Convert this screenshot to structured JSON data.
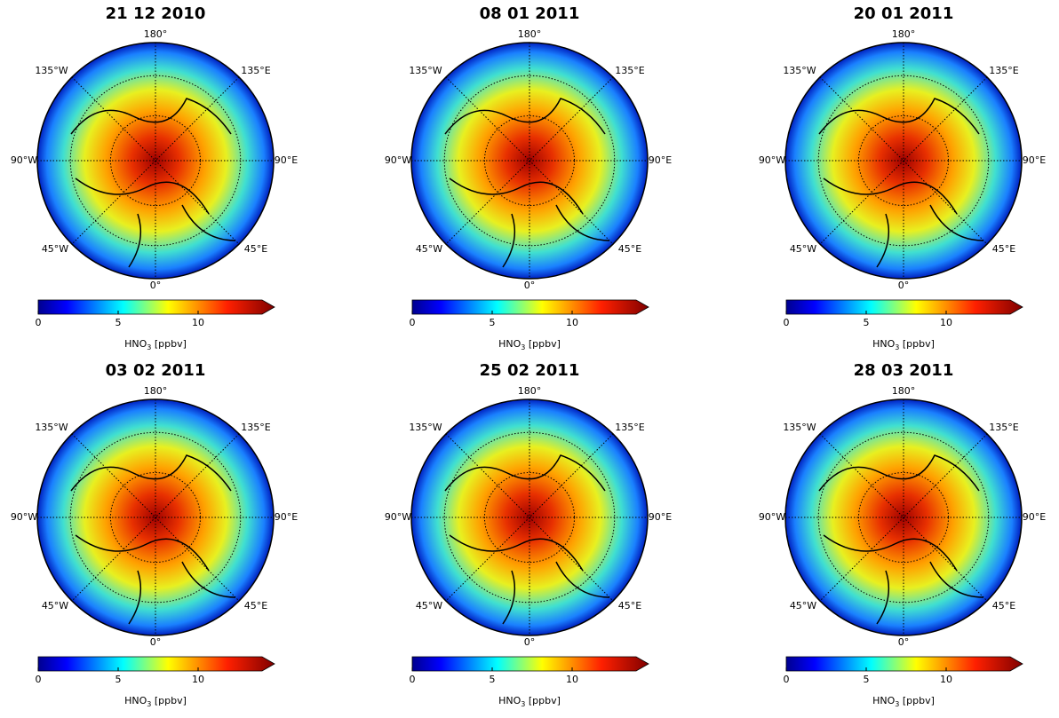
{
  "panels": [
    {
      "title": "21 12 2010"
    },
    {
      "title": "08 01 2011"
    },
    {
      "title": "20 01 2011"
    },
    {
      "title": "03 02 2011"
    },
    {
      "title": "25 02 2011"
    },
    {
      "title": "28 03 2011"
    }
  ],
  "map_labels": {
    "top": "180°",
    "top_right": "135°E",
    "right": "90°E",
    "bottom_right": "45°E",
    "bottom": "0°",
    "bottom_left": "45°W",
    "left": "90°W",
    "top_left": "135°W"
  },
  "colorbar": {
    "range": [
      0,
      14
    ],
    "ticks": [
      0,
      5,
      10
    ],
    "label_main": "HNO",
    "label_sub": "3",
    "label_unit": " [ppbv]"
  }
}
